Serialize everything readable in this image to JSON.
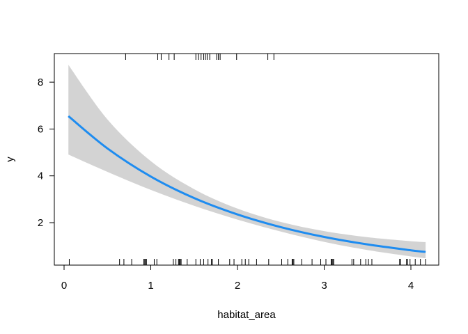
{
  "chart_data": {
    "type": "line",
    "title": "",
    "xlabel": "habitat_area",
    "ylabel": "y",
    "xlim": [
      -0.12,
      4.3
    ],
    "ylim": [
      0.18,
      9.2
    ],
    "x_ticks": [
      0,
      1,
      2,
      3,
      4
    ],
    "y_ticks": [
      2,
      4,
      6,
      8
    ],
    "grid": false,
    "colors": {
      "fit": "#1E8CF0",
      "band": "#D3D3D3",
      "rug": "#000000"
    },
    "x": [
      0.05,
      0.5,
      1,
      1.5,
      2,
      2.5,
      3,
      3.5,
      4,
      4.17
    ],
    "fit": [
      6.55,
      5.17,
      3.97,
      3.05,
      2.35,
      1.81,
      1.39,
      1.07,
      0.82,
      0.75
    ],
    "upper": [
      8.74,
      6.41,
      4.63,
      3.43,
      2.6,
      2.03,
      1.64,
      1.38,
      1.21,
      1.17
    ],
    "lower": [
      4.91,
      4.17,
      3.4,
      2.72,
      2.13,
      1.62,
      1.18,
      0.83,
      0.56,
      0.48
    ],
    "rug_bottom": [
      0.06,
      0.64,
      0.69,
      0.78,
      0.92,
      0.93,
      0.94,
      0.95,
      1.04,
      1.07,
      1.26,
      1.29,
      1.32,
      1.33,
      1.34,
      1.35,
      1.42,
      1.52,
      1.57,
      1.61,
      1.66,
      1.7,
      1.71,
      1.78,
      1.91,
      1.96,
      2.05,
      2.09,
      2.13,
      2.22,
      2.36,
      2.51,
      2.58,
      2.63,
      2.64,
      2.65,
      2.74,
      2.86,
      2.96,
      3.02,
      3.08,
      3.09,
      3.1,
      3.11,
      3.32,
      3.34,
      3.42,
      3.48,
      3.51,
      3.55,
      3.87,
      3.88,
      3.95,
      3.96,
      3.99,
      4.05,
      4.11,
      4.17
    ],
    "rug_top": [
      0.71,
      1.08,
      1.12,
      1.21,
      1.27,
      1.52,
      1.55,
      1.58,
      1.61,
      1.63,
      1.65,
      1.68,
      1.76,
      1.78,
      1.8,
      1.99,
      2.35,
      2.42
    ]
  }
}
